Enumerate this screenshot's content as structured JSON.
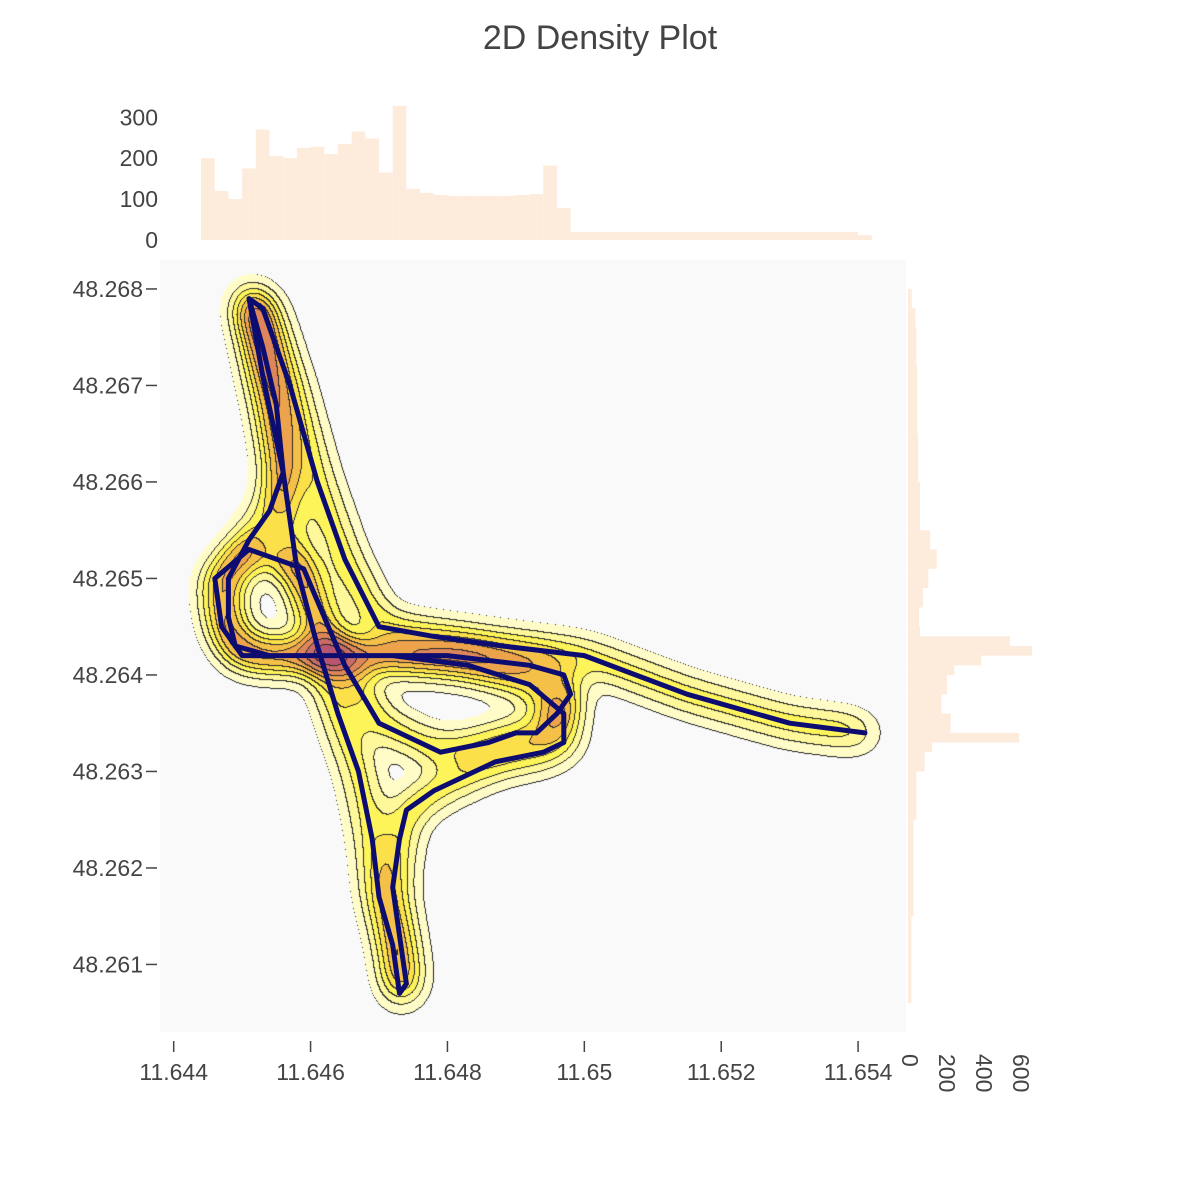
{
  "chart_data": {
    "type": "contour",
    "title": "2D Density Plot",
    "x_axis": {
      "range": [
        11.6438,
        11.6547
      ],
      "ticks": [
        11.644,
        11.646,
        11.648,
        11.65,
        11.652,
        11.654
      ],
      "tick_labels": [
        "11.644",
        "11.646",
        "11.648",
        "11.65",
        "11.652",
        "11.654"
      ]
    },
    "y_axis": {
      "range": [
        48.2603,
        48.2683
      ],
      "ticks": [
        48.261,
        48.262,
        48.263,
        48.264,
        48.265,
        48.266,
        48.267,
        48.268
      ],
      "tick_labels": [
        "48.261",
        "48.262",
        "48.263",
        "48.264",
        "48.265",
        "48.266",
        "48.267",
        "48.268"
      ]
    },
    "colors": {
      "plot_background": "#f9f9f9",
      "track_line": "#0d0c70",
      "histogram": "#fdebdc",
      "contour_line": "#222222",
      "colorscale": [
        "#fffcc8",
        "#fef89a",
        "#fdf45a",
        "#fbe04a",
        "#f5c048",
        "#eca34c",
        "#dc8659",
        "#c96a66",
        "#b85570"
      ]
    },
    "track": {
      "x": [
        11.6451,
        11.6453,
        11.6455,
        11.6456,
        11.6454,
        11.6451,
        11.6448,
        11.6448,
        11.6449,
        11.6454,
        11.6466,
        11.648,
        11.6492,
        11.6497,
        11.6498,
        11.6496,
        11.6493,
        11.649,
        11.6486,
        11.6479,
        11.647,
        11.6465,
        11.6462,
        11.6459,
        11.6451,
        11.6446,
        11.6447,
        11.645,
        11.6462,
        11.6472,
        11.6483,
        11.6492,
        11.6497,
        11.6497,
        11.6494,
        11.6487,
        11.6478,
        11.6474,
        11.6473,
        11.6472,
        11.6473,
        11.6474,
        11.6473,
        11.6472,
        11.647,
        11.6469,
        11.6467,
        11.6464,
        11.6461,
        11.6458,
        11.6456,
        11.6453,
        11.6451,
        11.6453,
        11.6457,
        11.6461,
        11.6465,
        11.647,
        11.6478,
        11.6488,
        11.65,
        11.6515,
        11.653,
        11.6541
      ],
      "y": [
        48.2679,
        48.2674,
        48.2668,
        48.2661,
        48.2657,
        48.2654,
        48.265,
        48.2646,
        48.2643,
        48.2642,
        48.2642,
        48.2642,
        48.2641,
        48.264,
        48.2638,
        48.2636,
        48.2634,
        48.2634,
        48.2633,
        48.2632,
        48.2635,
        48.2641,
        48.2646,
        48.2651,
        48.2653,
        48.265,
        48.2645,
        48.2642,
        48.2642,
        48.2642,
        48.2641,
        48.2639,
        48.2636,
        48.2633,
        48.2632,
        48.2631,
        48.2628,
        48.2626,
        48.2623,
        48.2618,
        48.2613,
        48.2608,
        48.2607,
        48.2612,
        48.2617,
        48.2623,
        48.263,
        48.2636,
        48.2643,
        48.2651,
        48.2661,
        48.2671,
        48.2679,
        48.2678,
        48.267,
        48.266,
        48.2652,
        48.2645,
        48.2644,
        48.2643,
        48.2642,
        48.2638,
        48.2635,
        48.2634
      ]
    },
    "x_histogram": {
      "y_range": [
        0,
        330
      ],
      "ticks": [
        0,
        100,
        200,
        300
      ],
      "tick_labels": [
        "0",
        "100",
        "200",
        "300"
      ],
      "bins": [
        [
          11.6444,
          11.6446,
          200
        ],
        [
          11.6446,
          11.6448,
          120
        ],
        [
          11.6448,
          11.645,
          100
        ],
        [
          11.645,
          11.6452,
          175
        ],
        [
          11.6452,
          11.6454,
          270
        ],
        [
          11.6454,
          11.6456,
          205
        ],
        [
          11.6456,
          11.6458,
          200
        ],
        [
          11.6458,
          11.646,
          225
        ],
        [
          11.646,
          11.6462,
          228
        ],
        [
          11.6462,
          11.6464,
          210
        ],
        [
          11.6464,
          11.6466,
          235
        ],
        [
          11.6466,
          11.6468,
          265
        ],
        [
          11.6468,
          11.647,
          248
        ],
        [
          11.647,
          11.6472,
          165
        ],
        [
          11.6472,
          11.6474,
          328
        ],
        [
          11.6474,
          11.6476,
          125
        ],
        [
          11.6476,
          11.6478,
          115
        ],
        [
          11.6478,
          11.648,
          110
        ],
        [
          11.648,
          11.6482,
          108
        ],
        [
          11.6482,
          11.6484,
          108
        ],
        [
          11.6484,
          11.6486,
          108
        ],
        [
          11.6486,
          11.6488,
          108
        ],
        [
          11.6488,
          11.649,
          108
        ],
        [
          11.649,
          11.6492,
          110
        ],
        [
          11.6492,
          11.6494,
          112
        ],
        [
          11.6494,
          11.6496,
          182
        ],
        [
          11.6496,
          11.6498,
          78
        ],
        [
          11.6498,
          11.65,
          20
        ],
        [
          11.65,
          11.653,
          20
        ],
        [
          11.653,
          11.654,
          20
        ],
        [
          11.654,
          11.6542,
          12
        ]
      ]
    },
    "y_histogram": {
      "x_range": [
        0,
        680
      ],
      "ticks": [
        0,
        200,
        400,
        600
      ],
      "tick_labels": [
        "0",
        "200",
        "400",
        "600"
      ],
      "bins": [
        [
          48.2678,
          48.268,
          20
        ],
        [
          48.2676,
          48.2678,
          40
        ],
        [
          48.2672,
          48.2676,
          45
        ],
        [
          48.2665,
          48.2672,
          50
        ],
        [
          48.266,
          48.2665,
          55
        ],
        [
          48.2655,
          48.266,
          65
        ],
        [
          48.2653,
          48.2655,
          120
        ],
        [
          48.2651,
          48.2653,
          155
        ],
        [
          48.2649,
          48.2651,
          110
        ],
        [
          48.2647,
          48.2649,
          80
        ],
        [
          48.2645,
          48.2647,
          60
        ],
        [
          48.2644,
          48.2645,
          65
        ],
        [
          48.2643,
          48.2644,
          550
        ],
        [
          48.2642,
          48.2643,
          670
        ],
        [
          48.2641,
          48.2642,
          395
        ],
        [
          48.264,
          48.2641,
          250
        ],
        [
          48.2638,
          48.264,
          210
        ],
        [
          48.2636,
          48.2638,
          180
        ],
        [
          48.2634,
          48.2636,
          230
        ],
        [
          48.2633,
          48.2634,
          600
        ],
        [
          48.2632,
          48.2633,
          130
        ],
        [
          48.263,
          48.2632,
          90
        ],
        [
          48.2625,
          48.263,
          45
        ],
        [
          48.2615,
          48.2625,
          30
        ],
        [
          48.2606,
          48.2615,
          18
        ]
      ]
    }
  }
}
